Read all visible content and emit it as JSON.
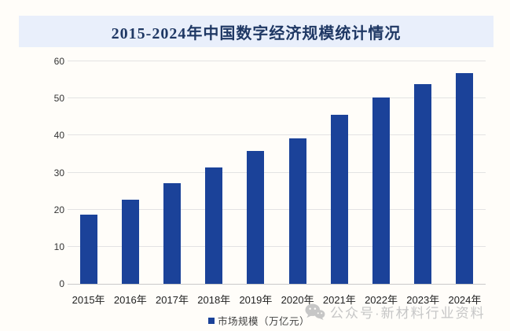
{
  "banner": {
    "title": "2015-2024年中国数字经济规模统计情况",
    "background": "#e9effb",
    "text_color": "#1f3864"
  },
  "chart_data": {
    "type": "bar",
    "title": "2015-2024年中国数字经济规模统计情况",
    "categories": [
      "2015年",
      "2016年",
      "2017年",
      "2018年",
      "2019年",
      "2020年",
      "2021年",
      "2022年",
      "2023年",
      "2024年"
    ],
    "series": [
      {
        "name": "市场规模（万亿元）",
        "values": [
          18.6,
          22.6,
          27.2,
          31.3,
          35.8,
          39.2,
          45.5,
          50.2,
          53.9,
          56.9
        ]
      }
    ],
    "xlabel": "",
    "ylabel": "",
    "ylim": [
      0,
      60
    ],
    "yticks": [
      0,
      10,
      20,
      30,
      40,
      50,
      60
    ],
    "grid": true,
    "bar_color": "#1b4299",
    "legend_position": "bottom"
  },
  "legend": {
    "label": "市场规模（万亿元）",
    "marker_color": "#1b4299"
  },
  "watermark": {
    "icon": "wechat-icon",
    "text": "公众号·新材料行业资料",
    "color": "#c6c6c6"
  }
}
